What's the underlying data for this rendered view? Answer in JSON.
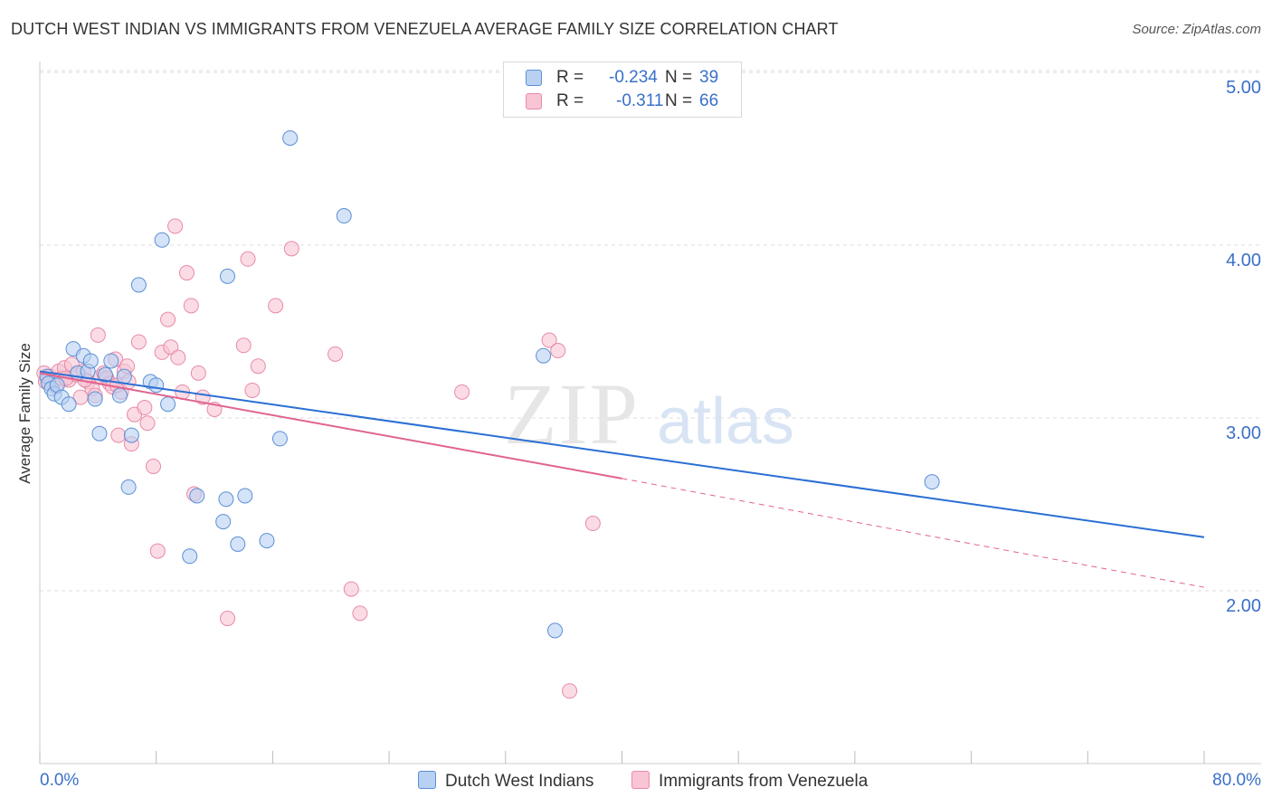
{
  "title": "DUTCH WEST INDIAN VS IMMIGRANTS FROM VENEZUELA AVERAGE FAMILY SIZE CORRELATION CHART",
  "source": "Source: ZipAtlas.com",
  "watermark": {
    "zip": "ZIP",
    "atlas": "atlas"
  },
  "legend_top": {
    "rows": [
      {
        "r_label": "R =",
        "r_value": "-0.234",
        "n_label": "N =",
        "n_value": "39"
      },
      {
        "r_label": "R =",
        "r_value": "-0.311",
        "n_label": "N =",
        "n_value": "66"
      }
    ]
  },
  "colors": {
    "blue_fill": "#b8d0f2",
    "blue_stroke": "#5b8fd6",
    "blue_line": "#2a6fd4",
    "pink_fill": "#f9c4d4",
    "pink_stroke": "#e88aa8",
    "pink_line": "#e0648e",
    "grid": "#dcdcdc",
    "tick_text": "#3a70c8"
  },
  "chart_data": {
    "type": "scatter",
    "title": "DUTCH WEST INDIAN VS IMMIGRANTS FROM VENEZUELA AVERAGE FAMILY SIZE CORRELATION CHART",
    "xlabel": "",
    "ylabel": "Average Family Size",
    "xlim": [
      0,
      80
    ],
    "ylim": [
      1.0,
      5.1
    ],
    "x_tick_labels": [
      "0.0%",
      "80.0%"
    ],
    "y_ticks": [
      2.0,
      3.0,
      4.0,
      5.0
    ],
    "y_tick_labels": [
      "2.00",
      "3.00",
      "4.00",
      "5.00"
    ],
    "grid": true,
    "legend_position": "bottom",
    "series": [
      {
        "name": "Dutch West Indians",
        "color": "#5b8fd6",
        "points": [
          [
            0.5,
            3.24
          ],
          [
            0.6,
            3.2
          ],
          [
            0.8,
            3.17
          ],
          [
            1.0,
            3.14
          ],
          [
            1.2,
            3.19
          ],
          [
            1.5,
            3.12
          ],
          [
            2.0,
            3.08
          ],
          [
            2.3,
            3.4
          ],
          [
            2.6,
            3.26
          ],
          [
            3.0,
            3.36
          ],
          [
            3.3,
            3.27
          ],
          [
            3.5,
            3.33
          ],
          [
            3.8,
            3.11
          ],
          [
            4.1,
            2.91
          ],
          [
            4.5,
            3.25
          ],
          [
            4.9,
            3.33
          ],
          [
            5.5,
            3.13
          ],
          [
            5.8,
            3.24
          ],
          [
            6.1,
            2.6
          ],
          [
            6.3,
            2.9
          ],
          [
            6.8,
            3.77
          ],
          [
            7.6,
            3.21
          ],
          [
            8.0,
            3.19
          ],
          [
            8.4,
            4.03
          ],
          [
            8.8,
            3.08
          ],
          [
            10.3,
            2.2
          ],
          [
            10.8,
            2.55
          ],
          [
            12.6,
            2.4
          ],
          [
            12.8,
            2.53
          ],
          [
            12.9,
            3.82
          ],
          [
            13.6,
            2.27
          ],
          [
            14.1,
            2.55
          ],
          [
            15.6,
            2.29
          ],
          [
            16.5,
            2.88
          ],
          [
            17.2,
            4.62
          ],
          [
            20.9,
            4.17
          ],
          [
            34.6,
            3.36
          ],
          [
            35.4,
            1.77
          ],
          [
            61.3,
            2.63
          ]
        ],
        "trend": {
          "x1": 0,
          "y1": 3.27,
          "x2": 80,
          "y2": 2.31
        }
      },
      {
        "name": "Immigrants from Venezuela",
        "color": "#e88aa8",
        "points": [
          [
            0.3,
            3.26
          ],
          [
            0.5,
            3.22
          ],
          [
            0.7,
            3.24
          ],
          [
            0.9,
            3.2
          ],
          [
            1.1,
            3.18
          ],
          [
            1.3,
            3.27
          ],
          [
            1.5,
            3.23
          ],
          [
            1.7,
            3.29
          ],
          [
            2.0,
            3.22
          ],
          [
            2.2,
            3.31
          ],
          [
            2.5,
            3.25
          ],
          [
            2.8,
            3.12
          ],
          [
            3.0,
            3.27
          ],
          [
            3.3,
            3.21
          ],
          [
            3.6,
            3.17
          ],
          [
            3.8,
            3.13
          ],
          [
            4.0,
            3.48
          ],
          [
            4.2,
            3.24
          ],
          [
            4.4,
            3.26
          ],
          [
            4.6,
            3.23
          ],
          [
            4.8,
            3.2
          ],
          [
            5.0,
            3.18
          ],
          [
            5.2,
            3.34
          ],
          [
            5.4,
            2.9
          ],
          [
            5.6,
            3.15
          ],
          [
            5.8,
            3.27
          ],
          [
            6.0,
            3.3
          ],
          [
            6.3,
            2.85
          ],
          [
            6.5,
            3.02
          ],
          [
            6.8,
            3.44
          ],
          [
            7.2,
            3.06
          ],
          [
            7.4,
            2.97
          ],
          [
            7.8,
            2.72
          ],
          [
            8.1,
            2.23
          ],
          [
            8.4,
            3.38
          ],
          [
            8.8,
            3.57
          ],
          [
            9.0,
            3.41
          ],
          [
            9.3,
            4.11
          ],
          [
            9.5,
            3.35
          ],
          [
            9.8,
            3.15
          ],
          [
            10.1,
            3.84
          ],
          [
            10.4,
            3.65
          ],
          [
            10.6,
            2.56
          ],
          [
            10.9,
            3.26
          ],
          [
            11.2,
            3.12
          ],
          [
            12.0,
            3.05
          ],
          [
            12.9,
            1.84
          ],
          [
            14.0,
            3.42
          ],
          [
            14.3,
            3.92
          ],
          [
            14.6,
            3.16
          ],
          [
            15.0,
            3.3
          ],
          [
            16.2,
            3.65
          ],
          [
            17.3,
            3.98
          ],
          [
            20.3,
            3.37
          ],
          [
            21.4,
            2.01
          ],
          [
            22.0,
            1.87
          ],
          [
            29.0,
            3.15
          ],
          [
            35.0,
            3.45
          ],
          [
            35.6,
            3.39
          ],
          [
            36.4,
            1.42
          ],
          [
            38.0,
            2.39
          ],
          [
            0.4,
            3.21
          ],
          [
            1.8,
            3.23
          ],
          [
            3.1,
            3.22
          ],
          [
            5.3,
            3.19
          ],
          [
            6.1,
            3.21
          ]
        ],
        "trend": {
          "x1": 0,
          "y1": 3.26,
          "x2": 40,
          "y2": 2.65,
          "dashed_to_x": 80,
          "dashed_to_y": 2.02
        }
      }
    ]
  }
}
